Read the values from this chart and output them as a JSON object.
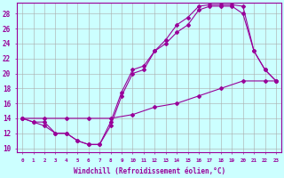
{
  "line1_x": [
    0,
    1,
    2,
    3,
    4,
    5,
    6,
    7,
    8,
    9,
    10,
    11,
    12,
    13,
    14,
    15,
    16,
    17,
    18,
    19,
    20,
    21,
    22,
    23
  ],
  "line1_y": [
    14,
    13.5,
    13,
    12,
    12,
    11,
    10.5,
    10.5,
    13,
    17,
    20,
    20.5,
    23,
    24,
    25.5,
    26.5,
    28.5,
    29,
    29,
    29,
    28,
    23,
    20.5,
    19
  ],
  "line2_x": [
    0,
    1,
    2,
    3,
    4,
    5,
    6,
    7,
    8,
    9,
    10,
    11,
    12,
    13,
    14,
    15,
    16,
    17,
    18,
    19,
    20,
    21,
    22,
    23
  ],
  "line2_y": [
    14,
    13.5,
    13.5,
    12,
    12,
    11,
    10.5,
    10.5,
    13.5,
    17.5,
    20.5,
    21,
    23,
    24.5,
    26.5,
    27.5,
    29,
    29.2,
    29.2,
    29.2,
    29,
    23,
    20.5,
    19
  ],
  "line3_x": [
    0,
    2,
    4,
    6,
    8,
    10,
    12,
    14,
    16,
    18,
    20,
    22,
    23
  ],
  "line3_y": [
    14,
    14,
    14,
    14,
    14,
    14.5,
    15.5,
    16,
    17,
    18,
    19,
    19,
    19
  ],
  "color": "#990099",
  "bg_color": "#ccffff",
  "grid_color": "#aaaaaa",
  "xlabel": "Windchill (Refroidissement éolien,°C)",
  "xlim": [
    -0.5,
    23.5
  ],
  "ylim": [
    9.5,
    29.5
  ],
  "xticks": [
    0,
    1,
    2,
    3,
    4,
    5,
    6,
    7,
    8,
    9,
    10,
    11,
    12,
    13,
    14,
    15,
    16,
    17,
    18,
    19,
    20,
    21,
    22,
    23
  ],
  "yticks": [
    10,
    12,
    14,
    16,
    18,
    20,
    22,
    24,
    26,
    28
  ],
  "marker": "D",
  "markersize": 2,
  "linewidth": 0.8
}
